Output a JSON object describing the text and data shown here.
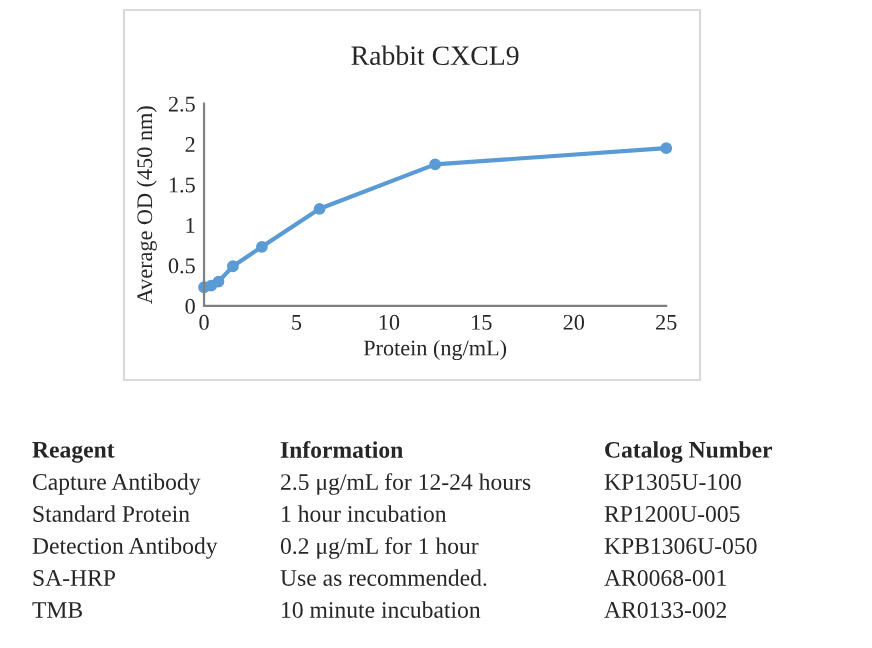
{
  "chart_data": {
    "type": "line",
    "title": "Rabbit CXCL9",
    "xlabel": "Protein (ng/mL)",
    "ylabel": "Average OD (450 nm)",
    "x": [
      0,
      0.39,
      0.78,
      1.56,
      3.13,
      6.25,
      12.5,
      25
    ],
    "series": [
      {
        "color": "#5b9bd5",
        "values": [
          0.23,
          0.25,
          0.3,
          0.49,
          0.73,
          1.2,
          1.75,
          1.95
        ]
      }
    ],
    "xlim": [
      0,
      25
    ],
    "xticks": [
      0,
      5,
      10,
      15,
      20,
      25
    ],
    "ylim": [
      0,
      2.5
    ],
    "yticks": [
      0,
      0.5,
      1,
      1.5,
      2,
      2.5
    ],
    "marker": "circle",
    "line_style": "solid",
    "grid": false,
    "annotations": [
      "Reagent",
      "Information",
      "Catalog Number",
      "Capture Antibody",
      "2.5 μg/mL for 12-24 hours",
      "KP1305U-100",
      "Standard Protein",
      "1 hour incubation",
      "RP1200U-005",
      "Detection Antibody",
      "0.2 μg/mL for 1 hour",
      "KPB1306U-050",
      "SA-HRP",
      "Use as recommended.",
      "AR0068-001",
      "TMB",
      "10 minute incubation",
      "AR0133-002"
    ]
  }
}
